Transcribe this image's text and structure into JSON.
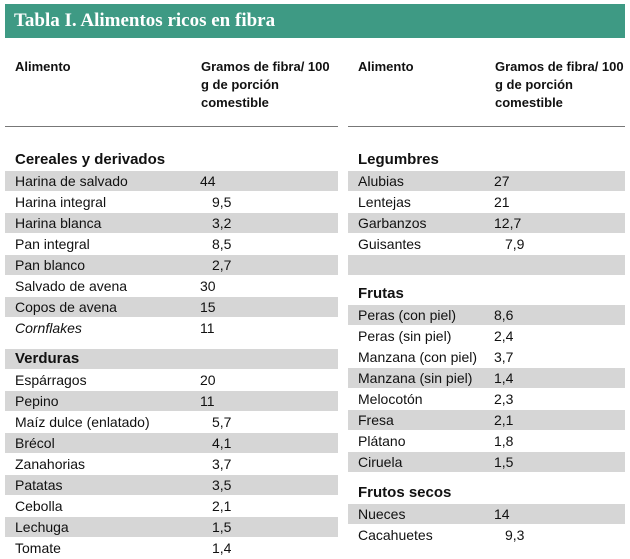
{
  "title": "Tabla I. Alimentos ricos en fibra",
  "headers": {
    "food": "Alimento",
    "fiber": "Gramos de fibra/ 100 g de porción comestible"
  },
  "left": {
    "sections": [
      {
        "name": "Cereales y derivados",
        "items": [
          {
            "name": "Harina de salvado",
            "value": "44"
          },
          {
            "name": "Harina integral",
            "value": "9,5"
          },
          {
            "name": "Harina blanca",
            "value": "3,2"
          },
          {
            "name": "Pan integral",
            "value": "8,5"
          },
          {
            "name": "Pan blanco",
            "value": "2,7"
          },
          {
            "name": "Salvado de avena",
            "value": "30"
          },
          {
            "name": "Copos de avena",
            "value": "15"
          },
          {
            "name": "Cornflakes",
            "value": "11"
          }
        ]
      },
      {
        "name": "Verduras",
        "items": [
          {
            "name": "Espárragos",
            "value": "20"
          },
          {
            "name": "Pepino",
            "value": "11"
          },
          {
            "name": "Maíz dulce (enlatado)",
            "value": "5,7"
          },
          {
            "name": "Brécol",
            "value": "4,1"
          },
          {
            "name": "Zanahorias",
            "value": "3,7"
          },
          {
            "name": "Patatas",
            "value": "3,5"
          },
          {
            "name": "Cebolla",
            "value": "2,1"
          },
          {
            "name": "Lechuga",
            "value": "1,5"
          },
          {
            "name": "Tomate",
            "value": "1,4"
          }
        ]
      }
    ]
  },
  "right": {
    "sections": [
      {
        "name": "Legumbres",
        "items": [
          {
            "name": "Alubias",
            "value": "27"
          },
          {
            "name": "Lentejas",
            "value": "21"
          },
          {
            "name": "Garbanzos",
            "value": "12,7"
          },
          {
            "name": "Guisantes",
            "value": "7,9"
          }
        ]
      },
      {
        "name": "Frutas",
        "items": [
          {
            "name": "Peras (con piel)",
            "value": "8,6"
          },
          {
            "name": "Peras (sin piel)",
            "value": "2,4"
          },
          {
            "name": "Manzana (con piel)",
            "value": "3,7"
          },
          {
            "name": "Manzana (sin piel)",
            "value": "1,4"
          },
          {
            "name": "Melocotón",
            "value": "2,3"
          },
          {
            "name": "Fresa",
            "value": "2,1"
          },
          {
            "name": "Plátano",
            "value": "1,8"
          },
          {
            "name": "Ciruela",
            "value": "1,5"
          }
        ]
      },
      {
        "name": "Frutos secos",
        "items": [
          {
            "name": "Nueces",
            "value": "14"
          },
          {
            "name": "Cacahuetes",
            "value": "9,3"
          }
        ]
      }
    ]
  }
}
